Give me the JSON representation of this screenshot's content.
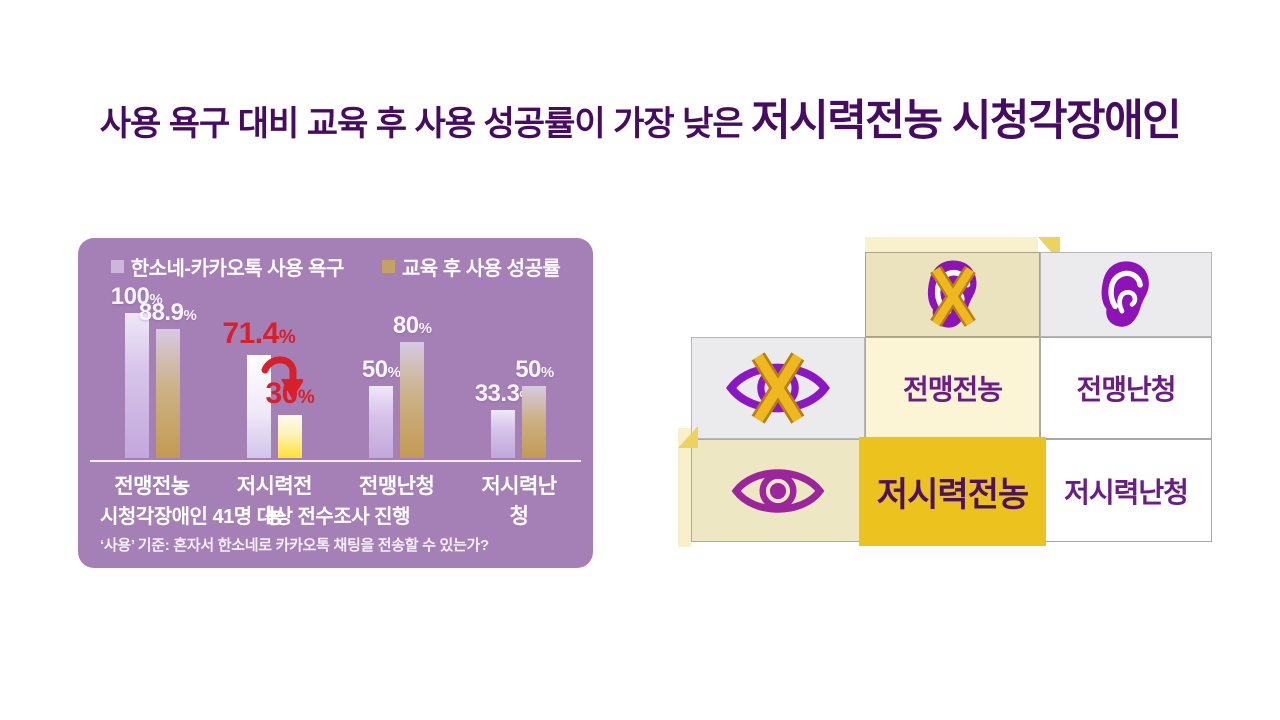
{
  "title": {
    "prefix": "사용 욕구 대비 교육 후 사용 성공률이 가장 낮은 ",
    "highlight": "저시력전농 시청각장애인"
  },
  "colors": {
    "title_text": "#470b63",
    "panel_background": "#a580b6",
    "want_bar": "#c2a7dc",
    "success_bar": "#c39a52",
    "highlight_want_bar": "#ffffff",
    "highlight_success_bar": "#ffe231",
    "highlight_label": "#d8202b",
    "gold_cell": "#ecc31e",
    "matrix_label": "#6b1c86"
  },
  "chart_panel": {
    "legend": [
      {
        "label": "한소네-카카오톡 사용 욕구",
        "swatch": "#cdb6de"
      },
      {
        "label": "교육 후 사용 성공률",
        "swatch": "#c3a264"
      }
    ],
    "footnote_title": "시청각장애인 41명 대상 전수조사 진행",
    "footnote_detail": "‘사용’ 기준: 혼자서 한소네로 카카오톡 채팅을 전송할 수 있는가?"
  },
  "chart_data": {
    "type": "bar",
    "categories": [
      "전맹전농",
      "저시력전농",
      "전맹난청",
      "저시력난청"
    ],
    "series": [
      {
        "name": "한소네-카카오톡 사용 욕구",
        "values": [
          100,
          71.4,
          50,
          33.3
        ]
      },
      {
        "name": "교육 후 사용 성공률",
        "values": [
          88.9,
          30,
          80,
          50
        ]
      }
    ],
    "unit": "%",
    "ylim": [
      0,
      100
    ],
    "grid": false,
    "legend_position": "top",
    "highlight": {
      "category": "저시력전농",
      "group_index": 1,
      "bar_variants": [
        "white",
        "yellow"
      ],
      "label_color": "#d8202b",
      "arrow": true
    }
  },
  "matrix": {
    "col_headers": [
      {
        "icon": "ear-crossed-icon"
      },
      {
        "icon": "ear-icon"
      }
    ],
    "rows": [
      {
        "icon": "eye-crossed-icon",
        "cells": [
          {
            "label": "전맹전농"
          },
          {
            "label": "전맹난청"
          }
        ]
      },
      {
        "icon": "eye-icon",
        "cells": [
          {
            "label": "저시력전농",
            "highlight": true
          },
          {
            "label": "저시력난청"
          }
        ]
      }
    ]
  }
}
